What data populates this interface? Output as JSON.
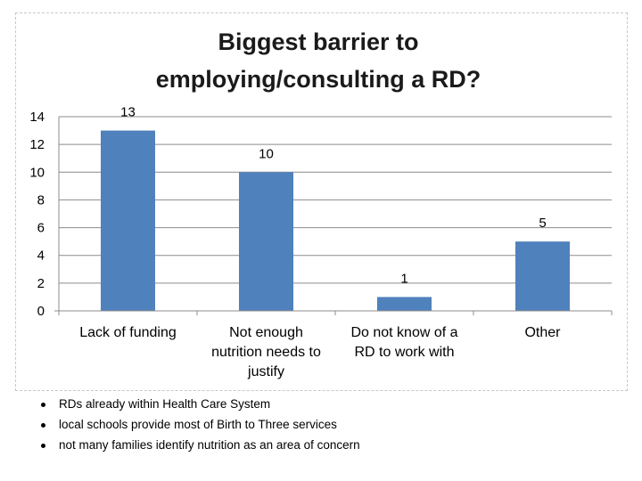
{
  "chart_data": {
    "type": "bar",
    "title": [
      "Biggest barrier to",
      "employing/consulting a RD?"
    ],
    "categories": [
      [
        "Lack of funding"
      ],
      [
        "Not enough",
        "nutrition needs to",
        "justify"
      ],
      [
        "Do not know of a",
        "RD to work with"
      ],
      [
        "Other"
      ]
    ],
    "values": [
      13,
      10,
      1,
      5
    ],
    "ylim": [
      0,
      14
    ],
    "yticks": [
      0,
      2,
      4,
      6,
      8,
      10,
      12,
      14
    ],
    "grid": true,
    "legend": "none",
    "bar_color": "#4f81bd",
    "xlabel": "",
    "ylabel": ""
  },
  "notes": [
    "RDs already within Health Care System",
    "local schools provide most of Birth to Three services",
    "not many families identify nutrition as an area of concern"
  ]
}
